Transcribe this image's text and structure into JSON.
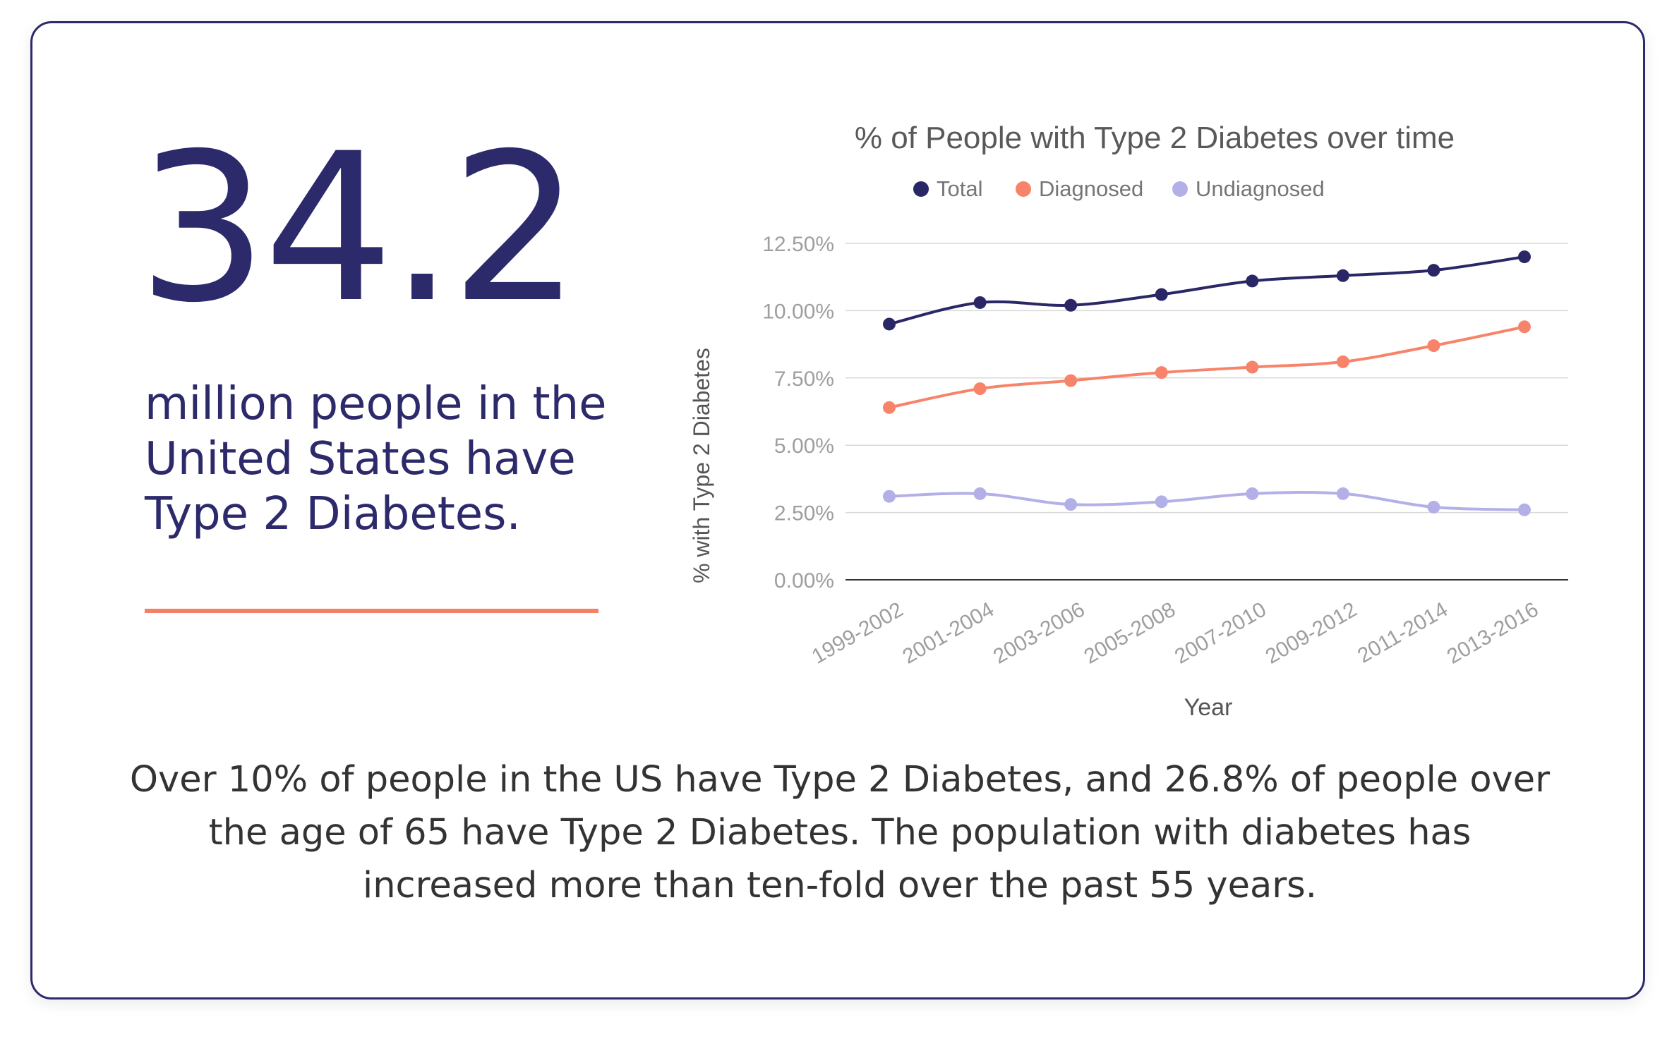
{
  "headline": {
    "number": "34.2",
    "text": "million people in the United States have Type 2 Diabetes."
  },
  "footer": {
    "text": "Over 10% of people in the US have Type 2 Diabetes, and 26.8% of people over the age of 65 have Type 2 Diabetes. The population with diabetes has increased more than ten-fold over the past 55 years."
  },
  "colors": {
    "navy": "#2c2a6b",
    "accent": "#f48167",
    "total": "#2a2766",
    "diagnosed": "#f7846a",
    "undiagnosed": "#b3b0e8"
  },
  "chart_data": {
    "type": "line",
    "title": "% of People with Type 2 Diabetes over time",
    "xlabel": "Year",
    "ylabel": "% with Type 2 Diabetes",
    "categories": [
      "1999-2002",
      "2001-2004",
      "2003-2006",
      "2005-2008",
      "2007-2010",
      "2009-2012",
      "2011-2014",
      "2013-2016"
    ],
    "ylim": [
      0,
      12.5
    ],
    "yticks": [
      "0.00%",
      "2.50%",
      "5.00%",
      "7.50%",
      "10.00%",
      "12.50%"
    ],
    "legend_position": "top",
    "grid": true,
    "series": [
      {
        "name": "Total",
        "color": "#2a2766",
        "values": [
          9.5,
          10.3,
          10.2,
          10.6,
          11.1,
          11.3,
          11.5,
          12.0
        ]
      },
      {
        "name": "Diagnosed",
        "color": "#f7846a",
        "values": [
          6.4,
          7.1,
          7.4,
          7.7,
          7.9,
          8.1,
          8.7,
          9.4
        ]
      },
      {
        "name": "Undiagnosed",
        "color": "#b3b0e8",
        "values": [
          3.1,
          3.2,
          2.8,
          2.9,
          3.2,
          3.2,
          2.7,
          2.6
        ]
      }
    ]
  }
}
